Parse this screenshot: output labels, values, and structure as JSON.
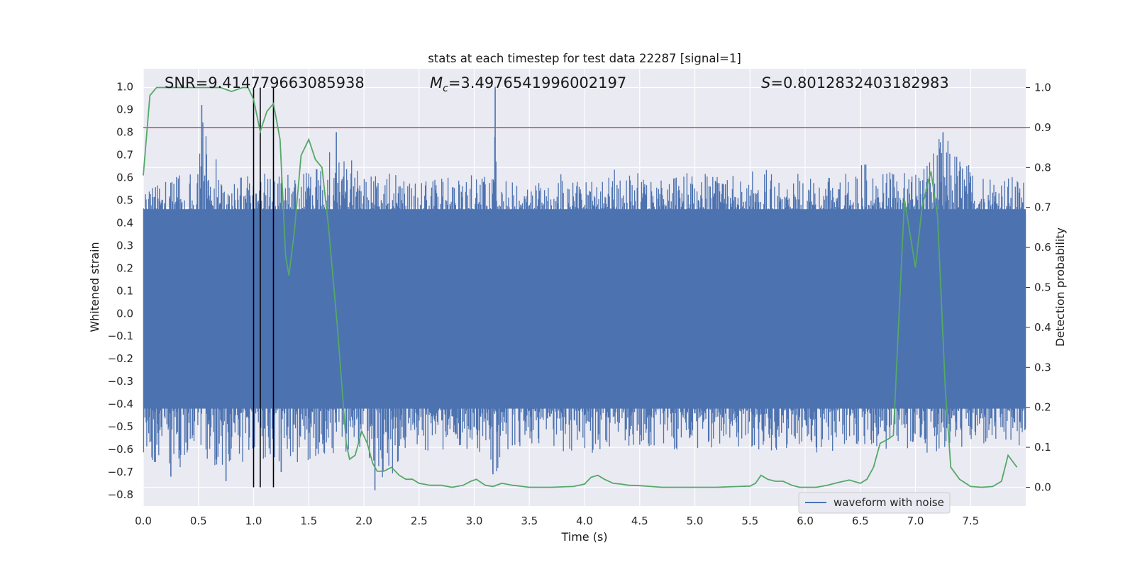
{
  "chart_data": {
    "type": "line",
    "title": "stats at each timestep for test data 22287 [signal=1]",
    "xlabel": "Time (s)",
    "ylabel": "Whitened strain",
    "y2label": "Detection probability",
    "xlim": [
      0,
      8
    ],
    "ylim": [
      -0.85,
      1.08
    ],
    "y2lim": [
      -0.047,
      1.047
    ],
    "x_ticks": [
      "0.0",
      "0.5",
      "1.0",
      "1.5",
      "2.0",
      "2.5",
      "3.0",
      "3.5",
      "4.0",
      "4.5",
      "5.0",
      "5.5",
      "6.0",
      "6.5",
      "7.0",
      "7.5"
    ],
    "y_ticks": [
      "1.0",
      "0.9",
      "0.8",
      "0.7",
      "0.6",
      "0.5",
      "0.4",
      "0.3",
      "0.2",
      "0.1",
      "0.0",
      "−0.1",
      "−0.2",
      "−0.3",
      "−0.4",
      "−0.5",
      "−0.6",
      "−0.7",
      "−0.8"
    ],
    "y2_ticks": [
      "1.0",
      "0.9",
      "0.8",
      "0.7",
      "0.6",
      "0.5",
      "0.4",
      "0.3",
      "0.2",
      "0.1",
      "0.0"
    ],
    "grid": true,
    "legend_position": "bottom-right",
    "annotations": {
      "snr": "SNR=9.414779663085938",
      "mc_symbol": "M",
      "mc_sub": "c",
      "mc_value": "=3.4976541996002197",
      "s_symbol": "S",
      "s_value": "=0.8012832403182983"
    },
    "threshold": 0.9,
    "vertical_lines_x": [
      1.0,
      1.06,
      1.18
    ],
    "series": [
      {
        "name": "waveform with noise",
        "color": "#4c72b0",
        "envelope_upper_x": [
          0.0,
          0.25,
          0.5,
          0.53,
          0.75,
          1.0,
          1.25,
          1.5,
          1.75,
          2.0,
          2.25,
          2.5,
          2.75,
          3.0,
          3.17,
          3.19,
          3.21,
          3.5,
          3.75,
          4.0,
          4.25,
          4.5,
          4.75,
          5.0,
          5.25,
          5.5,
          5.75,
          6.0,
          6.25,
          6.5,
          6.75,
          7.0,
          7.25,
          7.5,
          7.75,
          8.0
        ],
        "envelope_upper": [
          0.55,
          0.6,
          0.65,
          0.92,
          0.6,
          0.62,
          0.68,
          0.62,
          0.8,
          0.6,
          0.62,
          0.58,
          0.6,
          0.62,
          0.6,
          1.0,
          0.6,
          0.6,
          0.62,
          0.6,
          0.64,
          0.62,
          0.6,
          0.64,
          0.6,
          0.62,
          0.7,
          0.6,
          0.6,
          0.68,
          0.62,
          0.65,
          0.8,
          0.66,
          0.62,
          0.6
        ],
        "envelope_lower_x": [
          0.0,
          0.25,
          0.5,
          0.75,
          1.0,
          1.25,
          1.5,
          2.0,
          2.1,
          2.5,
          3.0,
          3.17,
          3.5,
          4.0,
          4.5,
          5.0,
          5.5,
          6.0,
          6.5,
          7.0,
          7.5,
          8.0
        ],
        "envelope_lower": [
          -0.62,
          -0.72,
          -0.6,
          -0.74,
          -0.62,
          -0.7,
          -0.65,
          -0.6,
          -0.78,
          -0.62,
          -0.6,
          -0.71,
          -0.6,
          -0.62,
          -0.6,
          -0.62,
          -0.6,
          -0.62,
          -0.6,
          -0.62,
          -0.6,
          -0.6
        ]
      },
      {
        "name": "",
        "color": "#55a868",
        "axis": "right",
        "x": [
          0.0,
          0.06,
          0.12,
          0.2,
          0.4,
          0.6,
          0.7,
          0.8,
          0.9,
          0.95,
          1.0,
          1.06,
          1.12,
          1.18,
          1.24,
          1.29,
          1.32,
          1.37,
          1.43,
          1.5,
          1.56,
          1.62,
          1.68,
          1.76,
          1.84,
          1.87,
          1.92,
          1.98,
          2.03,
          2.08,
          2.12,
          2.18,
          2.25,
          2.32,
          2.38,
          2.44,
          2.5,
          2.6,
          2.7,
          2.8,
          2.9,
          2.97,
          3.02,
          3.1,
          3.17,
          3.25,
          3.35,
          3.5,
          3.6,
          3.7,
          3.8,
          3.9,
          4.0,
          4.06,
          4.12,
          4.18,
          4.26,
          4.33,
          4.4,
          4.5,
          4.6,
          4.7,
          4.8,
          4.9,
          5.0,
          5.1,
          5.2,
          5.3,
          5.4,
          5.5,
          5.55,
          5.6,
          5.66,
          5.73,
          5.8,
          5.88,
          5.95,
          6.0,
          6.1,
          6.2,
          6.3,
          6.4,
          6.5,
          6.56,
          6.62,
          6.68,
          6.75,
          6.8,
          6.9,
          7.0,
          7.06,
          7.14,
          7.2,
          7.27,
          7.32,
          7.4,
          7.5,
          7.6,
          7.7,
          7.78,
          7.84,
          7.92
        ],
        "y": [
          0.78,
          0.98,
          1.0,
          1.0,
          1.0,
          1.0,
          1.0,
          0.99,
          1.0,
          1.0,
          0.97,
          0.89,
          0.94,
          0.96,
          0.87,
          0.58,
          0.53,
          0.64,
          0.83,
          0.87,
          0.82,
          0.8,
          0.65,
          0.4,
          0.11,
          0.07,
          0.08,
          0.14,
          0.11,
          0.06,
          0.04,
          0.04,
          0.05,
          0.03,
          0.02,
          0.02,
          0.01,
          0.005,
          0.005,
          0.0,
          0.005,
          0.015,
          0.02,
          0.005,
          0.002,
          0.01,
          0.005,
          0.0,
          0.0,
          0.0,
          0.001,
          0.002,
          0.008,
          0.025,
          0.03,
          0.02,
          0.01,
          0.008,
          0.005,
          0.004,
          0.002,
          0.0,
          0.0,
          0.0,
          0.0,
          0.0,
          0.0,
          0.001,
          0.002,
          0.003,
          0.01,
          0.03,
          0.02,
          0.015,
          0.015,
          0.005,
          0.0,
          0.0,
          0.0,
          0.005,
          0.012,
          0.018,
          0.01,
          0.02,
          0.05,
          0.11,
          0.12,
          0.13,
          0.72,
          0.55,
          0.7,
          0.79,
          0.68,
          0.25,
          0.05,
          0.02,
          0.002,
          0.0,
          0.002,
          0.015,
          0.08,
          0.05
        ]
      }
    ]
  }
}
